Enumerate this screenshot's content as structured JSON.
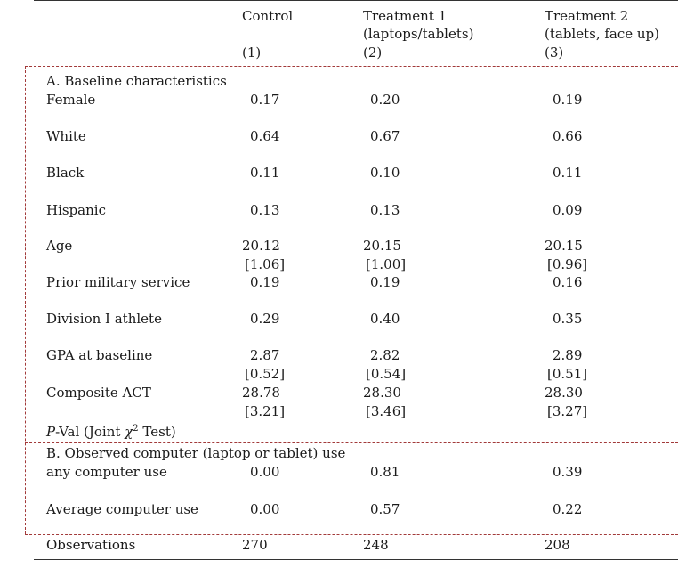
{
  "header": {
    "col1": {
      "name": "Control",
      "number": "(1)"
    },
    "col2": {
      "name": "Treatment 1",
      "sub": "(laptops/tablets)",
      "number": "(2)"
    },
    "col3": {
      "name": "Treatment 2",
      "sub": "(tablets, face up)",
      "number": "(3)"
    }
  },
  "panelA": {
    "title": "A. Baseline characteristics",
    "rows": [
      {
        "label": "Female",
        "c1": "0.17",
        "c2": "0.20",
        "c3": "0.19"
      },
      {
        "label": "White",
        "c1": "0.64",
        "c2": "0.67",
        "c3": "0.66"
      },
      {
        "label": "Black",
        "c1": "0.11",
        "c2": "0.10",
        "c3": "0.11"
      },
      {
        "label": "Hispanic",
        "c1": "0.13",
        "c2": "0.13",
        "c3": "0.09"
      },
      {
        "label": "Age",
        "c1": "20.12",
        "c2": "20.15",
        "c3": "20.15",
        "se1": "[1.06]",
        "se2": "[1.00]",
        "se3": "[0.96]"
      },
      {
        "label": "Prior military service",
        "c1": "0.19",
        "c2": "0.19",
        "c3": "0.16"
      },
      {
        "label": "Division I athlete",
        "c1": "0.29",
        "c2": "0.40",
        "c3": "0.35"
      },
      {
        "label": "GPA at baseline",
        "c1": "2.87",
        "c2": "2.82",
        "c3": "2.89",
        "se1": "[0.52]",
        "se2": "[0.54]",
        "se3": "[0.51]"
      },
      {
        "label": "Composite ACT",
        "c1": "28.78",
        "c2": "28.30",
        "c3": "28.30",
        "se1": "[3.21]",
        "se2": "[3.46]",
        "se3": "[3.27]"
      }
    ],
    "pval": {
      "p": "P",
      "rest_a": "-Val (Joint ",
      "chi": "χ",
      "sup": "2",
      "rest_b": " Test)"
    }
  },
  "panelB": {
    "title": "B. Observed computer (laptop or tablet) use",
    "rows": [
      {
        "label": "any computer use",
        "c1": "0.00",
        "c2": "0.81",
        "c3": "0.39"
      },
      {
        "label": "Average computer use",
        "c1": "0.00",
        "c2": "0.57",
        "c3": "0.22"
      }
    ]
  },
  "observations": {
    "label": "Observations",
    "c1": "270",
    "c2": "248",
    "c3": "208"
  }
}
